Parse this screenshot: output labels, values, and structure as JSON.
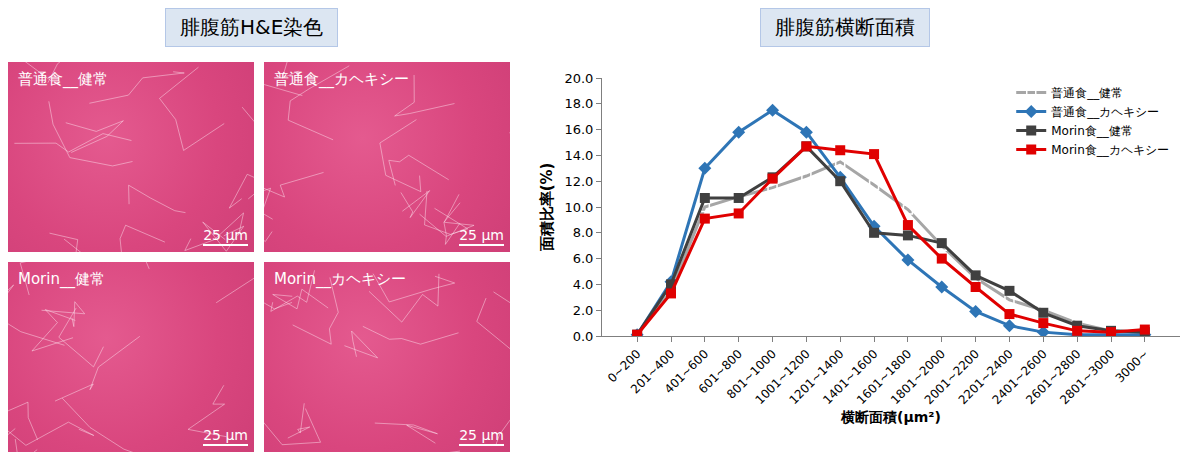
{
  "micrographs": {
    "title": "腓腹筋H&E染色",
    "panels": [
      {
        "label": "普通食__健常",
        "scale_bar": "25 µm"
      },
      {
        "label": "普通食__カヘキシー",
        "scale_bar": "25 µm"
      },
      {
        "label": "Morin__健常",
        "scale_bar": "25 µm"
      },
      {
        "label": "Morin__カヘキシー",
        "scale_bar": "25 µm"
      }
    ]
  },
  "chart_data": {
    "type": "line",
    "title": "腓腹筋横断面積",
    "x_label": "横断面積(µm²)",
    "y_label": "面積比率(%)",
    "categories": [
      "0~200",
      "201~400",
      "401~600",
      "601~800",
      "801~1000",
      "1001~1200",
      "1201~1400",
      "1401~1600",
      "1601~1800",
      "1801~2000",
      "2001~2200",
      "2201~2400",
      "2401~2600",
      "2601~2800",
      "2801~3000",
      "3000~"
    ],
    "series": [
      {
        "name": "普通食__健常",
        "color": "#a6a6a6",
        "marker": "square-open",
        "values": [
          0.1,
          3.5,
          10.0,
          10.8,
          11.5,
          12.4,
          13.5,
          11.7,
          9.8,
          7.0,
          4.5,
          2.8,
          2.0,
          1.0,
          0.4,
          0.3
        ]
      },
      {
        "name": "普通食__カヘキシー",
        "color": "#2e75b6",
        "marker": "diamond",
        "values": [
          0.1,
          4.2,
          13.0,
          15.8,
          17.5,
          15.8,
          12.3,
          8.5,
          5.9,
          3.8,
          1.9,
          0.8,
          0.3,
          0.1,
          0.1,
          0.1
        ]
      },
      {
        "name": "Morin食__健常",
        "color": "#404040",
        "marker": "square",
        "values": [
          0.1,
          4.0,
          10.7,
          10.7,
          12.3,
          14.7,
          12.0,
          8.0,
          7.8,
          7.2,
          4.7,
          3.5,
          1.8,
          0.8,
          0.4,
          0.3
        ]
      },
      {
        "name": "Morin食__カヘキシー",
        "color": "#e00000",
        "marker": "square",
        "values": [
          0.1,
          3.3,
          9.1,
          9.5,
          12.2,
          14.7,
          14.4,
          14.1,
          8.6,
          6.0,
          3.8,
          1.7,
          1.0,
          0.4,
          0.3,
          0.5
        ]
      }
    ],
    "ylim": [
      0,
      20
    ],
    "yticks": [
      {
        "value": 0,
        "label": "0.0"
      },
      {
        "value": 2,
        "label": "2.0"
      },
      {
        "value": 4,
        "label": "4.0"
      },
      {
        "value": 6,
        "label": "6.0"
      },
      {
        "value": 8,
        "label": "8.0"
      },
      {
        "value": 10,
        "label": "10.0"
      },
      {
        "value": 12,
        "label": "12.0"
      },
      {
        "value": 14,
        "label": "14.0"
      },
      {
        "value": 16,
        "label": "16.0"
      },
      {
        "value": 18,
        "label": "18.0"
      },
      {
        "value": 20,
        "label": "20.0"
      }
    ],
    "grid": false,
    "legend": "upper right"
  }
}
